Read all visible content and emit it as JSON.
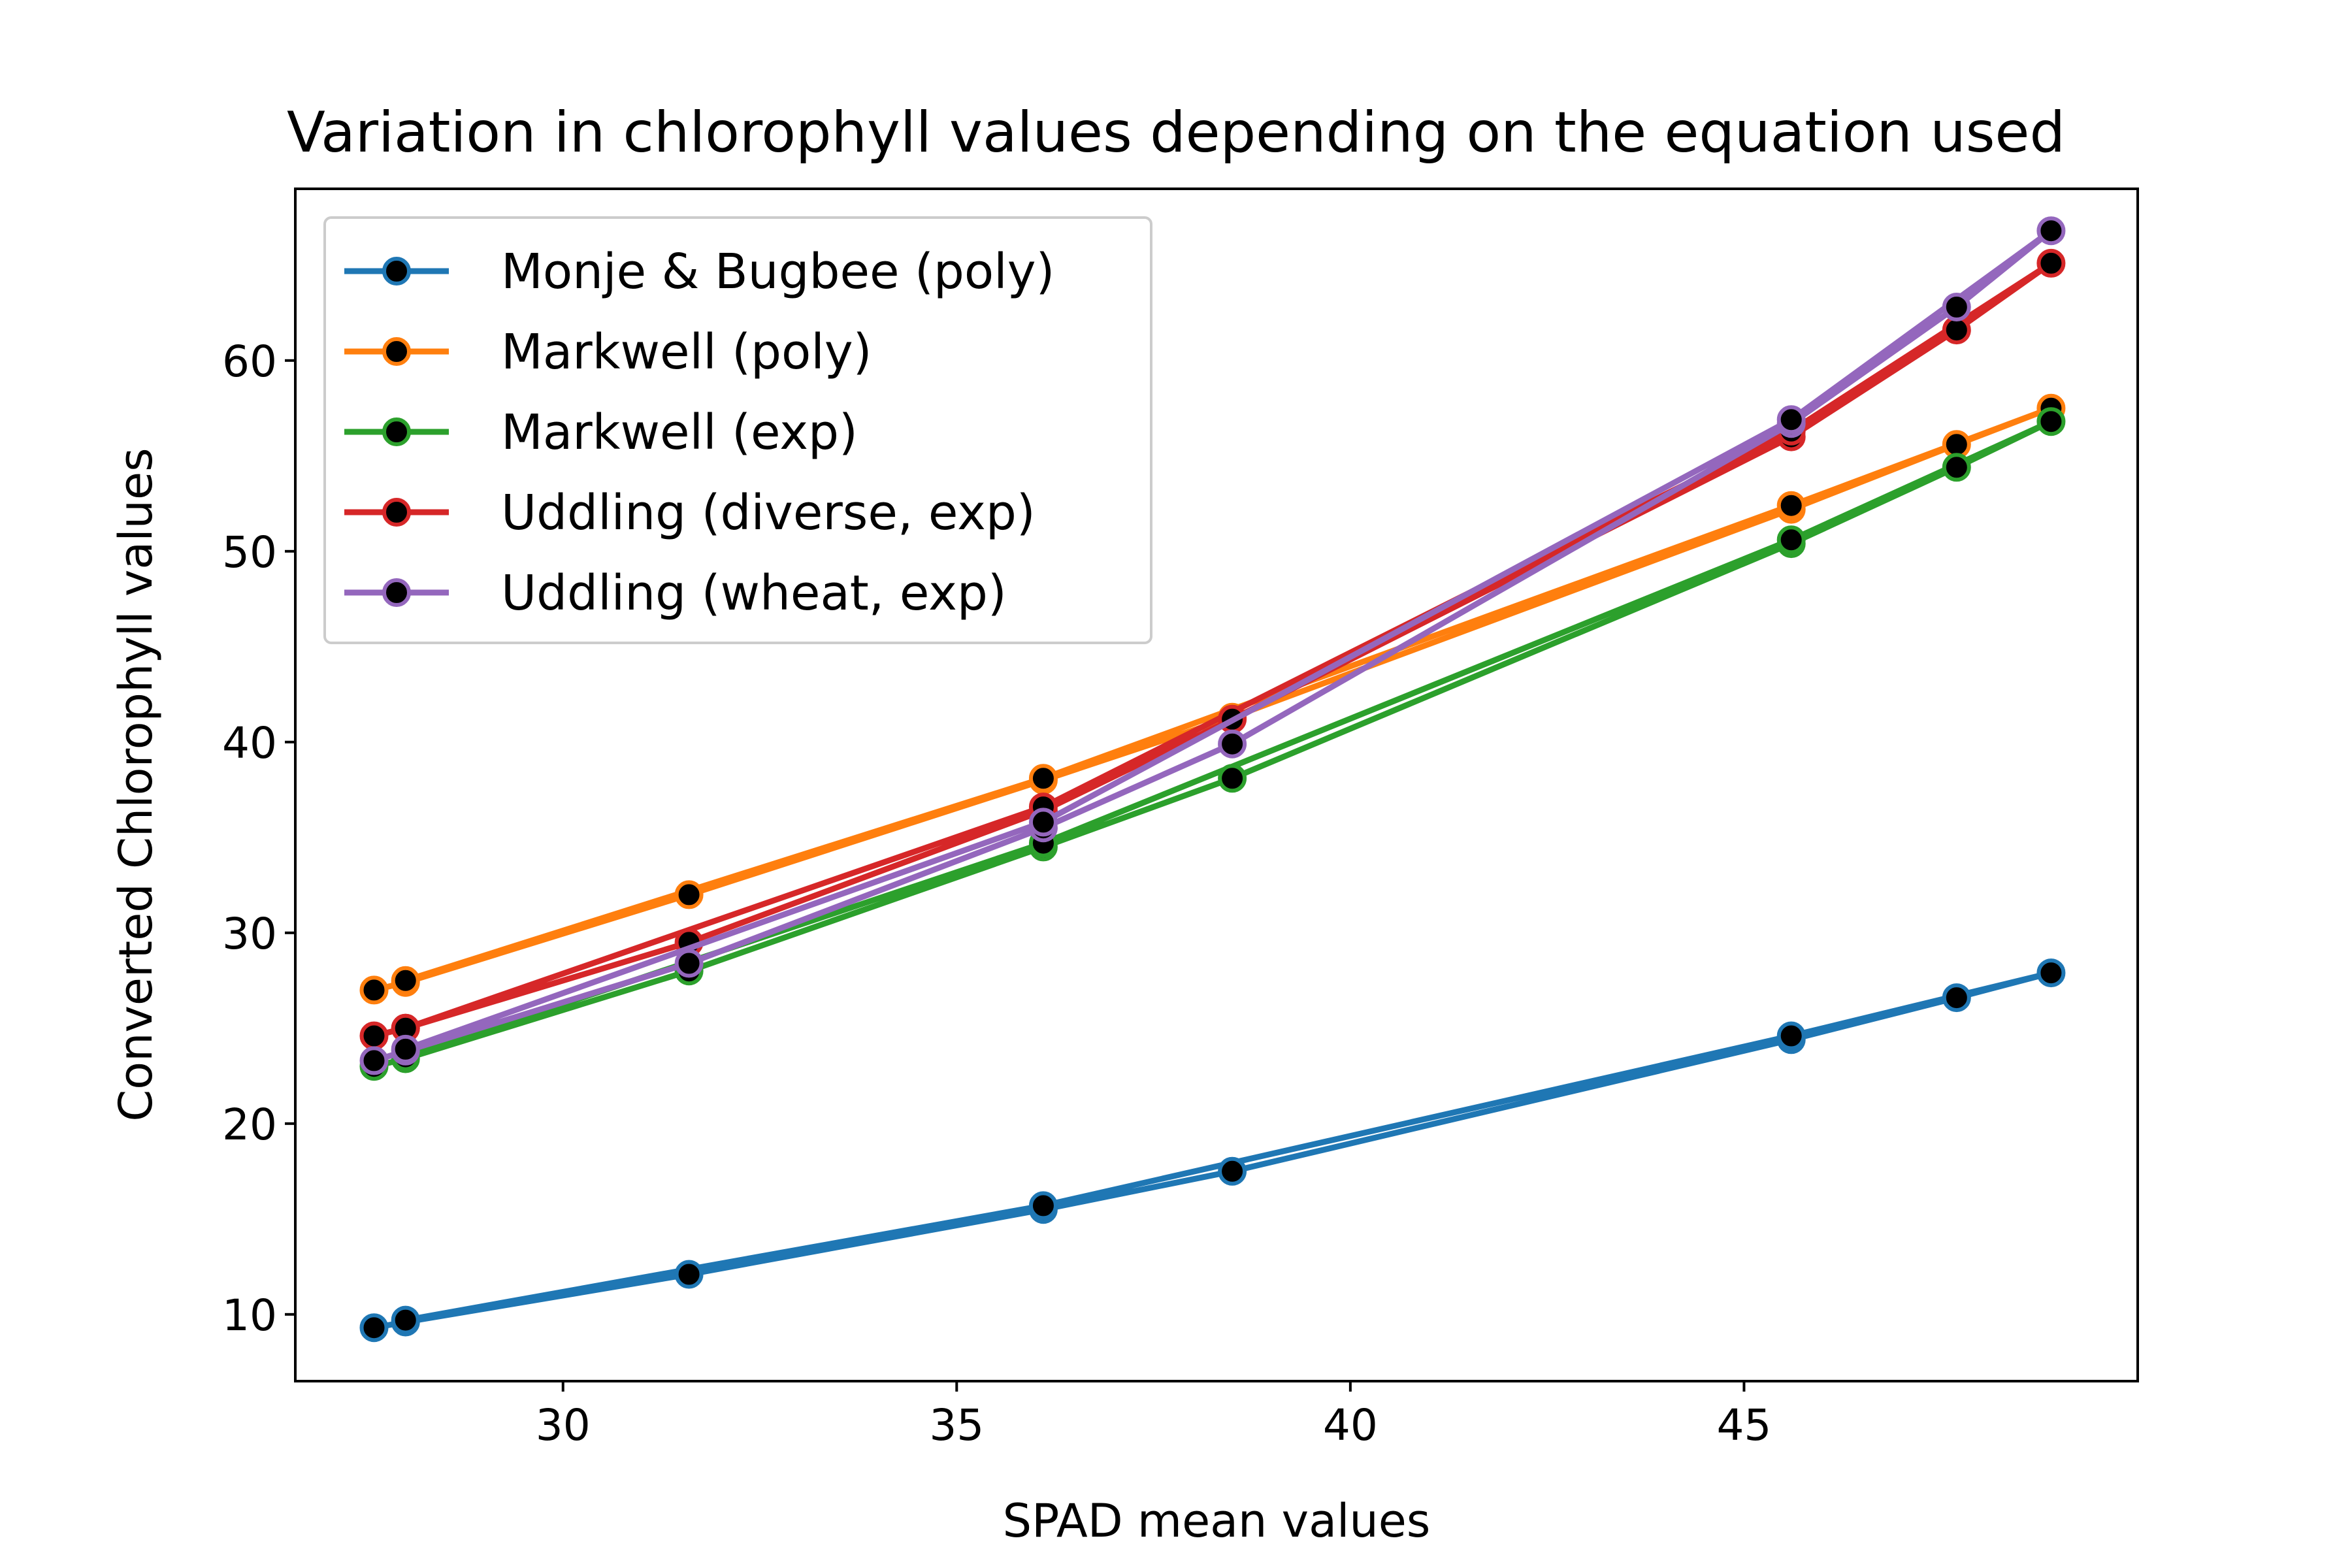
{
  "chart_data": {
    "type": "line",
    "title": "Variation in chlorophyll values depending on the equation used",
    "xlabel": "SPAD mean values",
    "ylabel": "Converted Chlorophyll values",
    "xlim": [
      26.6,
      50.0
    ],
    "ylim": [
      6.5,
      69.0
    ],
    "xticks": [
      30,
      35,
      40,
      45
    ],
    "yticks": [
      10,
      20,
      30,
      40,
      50,
      60
    ],
    "grid": false,
    "legend_position": "upper-left",
    "marker_face_color": "#000000",
    "x": [
      27.6,
      28.0,
      31.6,
      36.1,
      38.5,
      45.6,
      47.7,
      48.9,
      45.6,
      36.1,
      28.0
    ],
    "series": [
      {
        "name": "Monje & Bugbee (poly)",
        "color": "#1f77b4",
        "values": [
          9.3,
          9.6,
          12.1,
          15.5,
          17.5,
          24.4,
          26.6,
          27.9,
          24.6,
          15.7,
          9.7
        ]
      },
      {
        "name": "Markwell (poly)",
        "color": "#ff7f0e",
        "values": [
          27.0,
          27.4,
          32.0,
          38.0,
          41.3,
          52.2,
          55.6,
          57.5,
          52.4,
          38.1,
          27.5
        ]
      },
      {
        "name": "Markwell (exp)",
        "color": "#2ca02c",
        "values": [
          23.0,
          23.4,
          28.0,
          34.5,
          38.1,
          50.4,
          54.4,
          56.8,
          50.6,
          34.7,
          23.5
        ]
      },
      {
        "name": "Uddling (diverse, exp)",
        "color": "#d62728",
        "values": [
          24.6,
          25.0,
          29.5,
          36.4,
          41.2,
          56.0,
          61.6,
          65.1,
          56.3,
          36.6,
          25.0
        ]
      },
      {
        "name": "Uddling (wheat, exp)",
        "color": "#9467bd",
        "values": [
          23.3,
          23.8,
          28.4,
          35.5,
          39.9,
          56.7,
          62.8,
          66.8,
          56.9,
          35.8,
          23.9
        ]
      }
    ]
  }
}
